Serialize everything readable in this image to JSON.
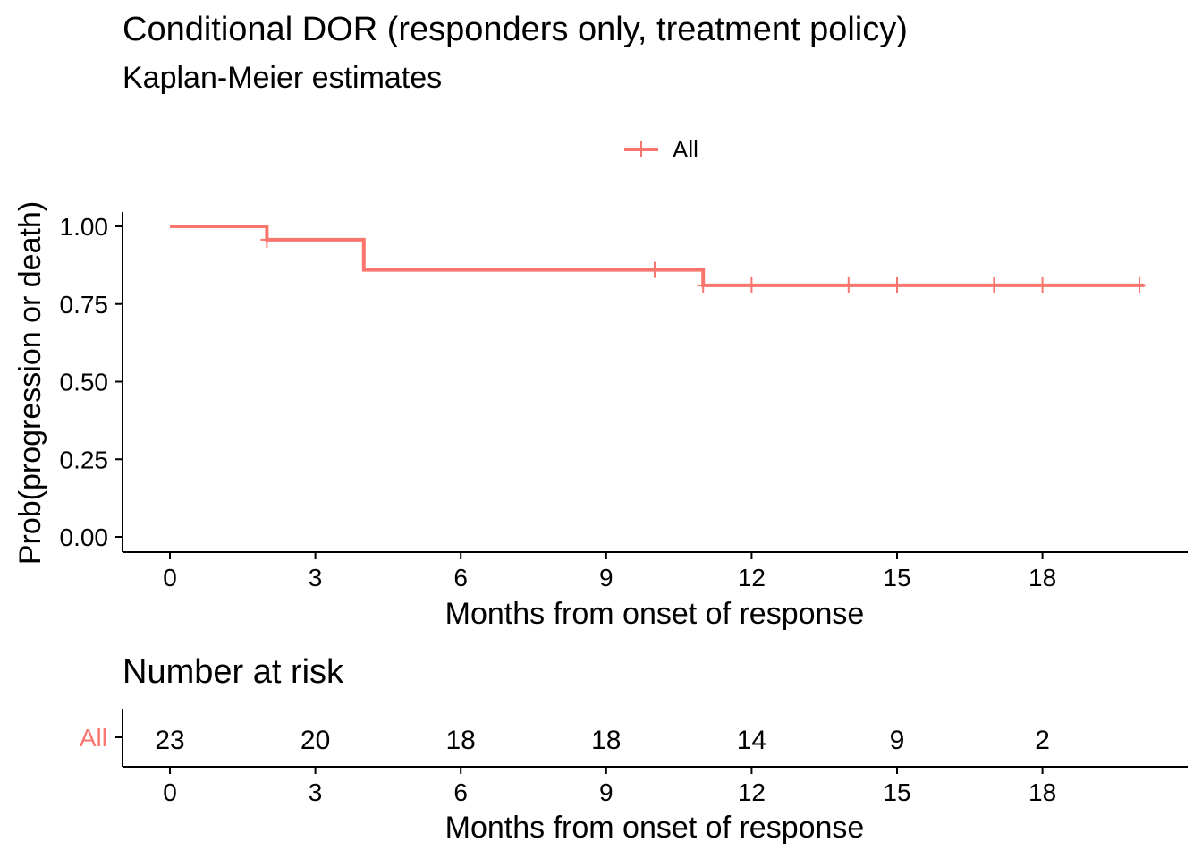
{
  "title": "Conditional DOR (responders only, treatment policy)",
  "subtitle": "Kaplan-Meier estimates",
  "colors": {
    "series": "#F8766D",
    "axis": "#000000"
  },
  "chart_data": [
    {
      "type": "line",
      "subtype": "kaplan-meier-step",
      "title": "Conditional DOR (responders only, treatment policy)",
      "subtitle": "Kaplan-Meier estimates",
      "xlabel": "Months from onset of response",
      "ylabel": "Prob(progression or death)",
      "xlim": [
        -1,
        20.8
      ],
      "ylim": [
        -0.05,
        1.05
      ],
      "xticks": [
        0,
        3,
        6,
        9,
        12,
        15,
        18
      ],
      "xtick_labels": [
        "0",
        "3",
        "6",
        "9",
        "12",
        "15",
        "18"
      ],
      "yticks": [
        0,
        0.25,
        0.5,
        0.75,
        1
      ],
      "ytick_labels": [
        "0.00",
        "0.25",
        "0.50",
        "0.75",
        "1.00"
      ],
      "legend": {
        "position": "top",
        "entries": [
          "All"
        ]
      },
      "grid": false,
      "series": [
        {
          "name": "All",
          "color": "#F8766D",
          "steps": [
            {
              "x": 0,
              "y": 1.0
            },
            {
              "x": 2,
              "y": 0.957
            },
            {
              "x": 4,
              "y": 0.86
            },
            {
              "x": 11,
              "y": 0.81
            },
            {
              "x": 20.1,
              "y": 0.81
            }
          ],
          "censored": [
            {
              "x": 2,
              "y": 0.957
            },
            {
              "x": 10,
              "y": 0.86
            },
            {
              "x": 11,
              "y": 0.81
            },
            {
              "x": 12,
              "y": 0.81
            },
            {
              "x": 14,
              "y": 0.81
            },
            {
              "x": 15,
              "y": 0.81
            },
            {
              "x": 17,
              "y": 0.81
            },
            {
              "x": 18,
              "y": 0.81
            },
            {
              "x": 20,
              "y": 0.81
            }
          ]
        }
      ]
    },
    {
      "type": "table",
      "title": "Number at risk",
      "xlabel": "Months from onset of response",
      "xticks": [
        0,
        3,
        6,
        9,
        12,
        15,
        18
      ],
      "xtick_labels": [
        "0",
        "3",
        "6",
        "9",
        "12",
        "15",
        "18"
      ],
      "rows": [
        {
          "name": "All",
          "values": [
            23,
            20,
            18,
            18,
            14,
            9,
            2
          ]
        }
      ]
    }
  ]
}
